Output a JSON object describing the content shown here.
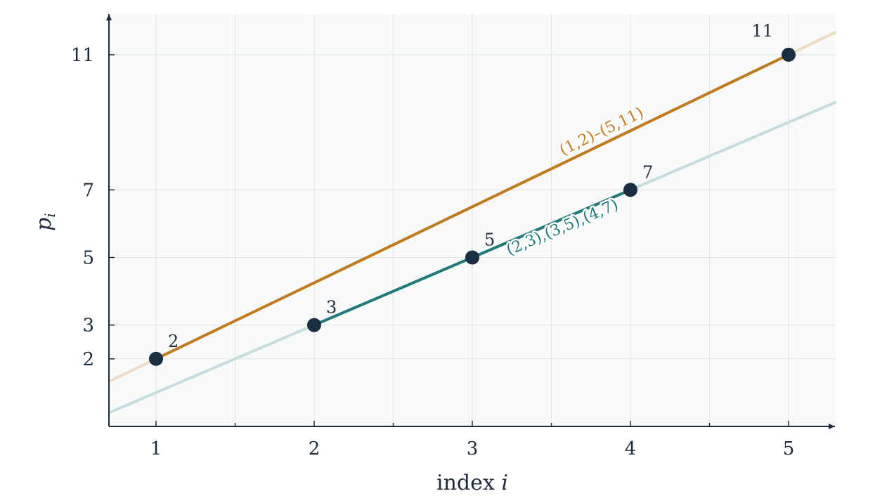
{
  "chart_data": {
    "type": "line",
    "title": "",
    "xlabel": "index i",
    "ylabel": "p_i",
    "xlim": [
      0.7,
      5.3
    ],
    "ylim": [
      0,
      12.2
    ],
    "x_ticks": [
      1,
      2,
      3,
      4,
      5
    ],
    "y_ticks": [
      2,
      3,
      5,
      7,
      11
    ],
    "grid": true,
    "points": [
      {
        "x": 1,
        "y": 2,
        "label": "2"
      },
      {
        "x": 2,
        "y": 3,
        "label": "3"
      },
      {
        "x": 3,
        "y": 5,
        "label": "5"
      },
      {
        "x": 4,
        "y": 7,
        "label": "7"
      },
      {
        "x": 5,
        "y": 11,
        "label": "11"
      }
    ],
    "series": [
      {
        "name": "(1,2)–(5,11)",
        "slope": 2.25,
        "intercept": -0.25,
        "segment_x": [
          1,
          5
        ],
        "color": "#c07a1f",
        "extension_color": "#ecdcc4"
      },
      {
        "name": "(2,3),(3,5),(4,7)",
        "slope": 2,
        "intercept": -1,
        "segment_x": [
          2,
          4
        ],
        "color": "#217a7a",
        "extension_color": "#c7dddd"
      }
    ],
    "colors": {
      "background": "#f8f9f9",
      "grid": "#dfe3e3",
      "axis": "#1d2b3a",
      "point": "#1a2e42"
    }
  }
}
